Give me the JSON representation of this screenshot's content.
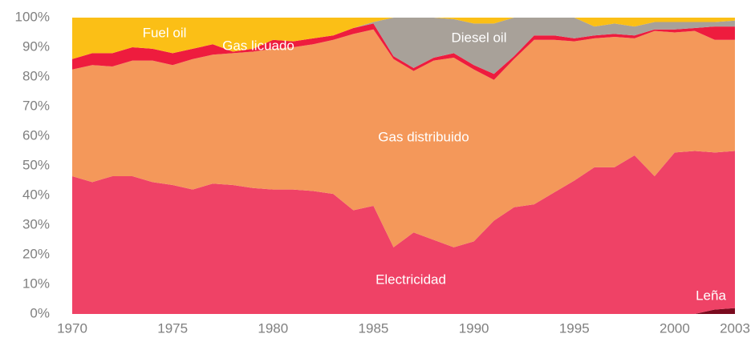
{
  "chart_data": {
    "type": "stacked_area",
    "x": [
      1970,
      1971,
      1972,
      1973,
      1974,
      1975,
      1976,
      1977,
      1978,
      1979,
      1980,
      1981,
      1982,
      1983,
      1984,
      1985,
      1986,
      1987,
      1988,
      1989,
      1990,
      1991,
      1992,
      1993,
      1994,
      1995,
      1996,
      1997,
      1998,
      1999,
      2000,
      2001,
      2002,
      2003
    ],
    "xlim": [
      1970,
      2003
    ],
    "xticks": [
      1970,
      1975,
      1980,
      1985,
      1990,
      1995,
      2000,
      2003
    ],
    "ylim": [
      0,
      100
    ],
    "yticks": [
      {
        "value": 0,
        "label": "0%"
      },
      {
        "value": 10,
        "label": "10%"
      },
      {
        "value": 20,
        "label": "20%"
      },
      {
        "value": 30,
        "label": "30%"
      },
      {
        "value": 40,
        "label": "40%"
      },
      {
        "value": 50,
        "label": "50%"
      },
      {
        "value": 60,
        "label": "60%"
      },
      {
        "value": 70,
        "label": "70%"
      },
      {
        "value": 80,
        "label": "80%"
      },
      {
        "value": 90,
        "label": "90%"
      },
      {
        "value": 100,
        "label": "100%"
      }
    ],
    "series": [
      {
        "name": "Leña",
        "color": "#7a0a1e",
        "values": [
          0,
          0,
          0,
          0,
          0,
          0,
          0,
          0,
          0,
          0,
          0,
          0,
          0,
          0,
          0,
          0,
          0,
          0,
          0,
          0,
          0,
          0,
          0,
          0,
          0,
          0,
          0,
          0,
          0,
          0,
          0,
          0,
          1.5,
          2
        ]
      },
      {
        "name": "Electricidad",
        "color": "#ef4266",
        "values": [
          46.5,
          44.5,
          46.5,
          46.5,
          44.5,
          43.5,
          42,
          44,
          43.5,
          42.5,
          42,
          42,
          41.5,
          40.5,
          35,
          36.5,
          22.5,
          27.5,
          25,
          22.5,
          24.5,
          31.5,
          36,
          37,
          41,
          45,
          49.5,
          49.5,
          53.5,
          46.5,
          54.5,
          55,
          53,
          53
        ]
      },
      {
        "name": "Gas distribuido",
        "color": "#f4985a",
        "values": [
          36,
          39.5,
          37,
          39,
          41,
          40.5,
          44,
          43.5,
          44.5,
          46,
          47.5,
          48,
          49.5,
          52,
          59.5,
          59.5,
          63.5,
          54.5,
          60.5,
          64,
          58,
          47.5,
          50,
          55.5,
          51.5,
          47,
          43.5,
          44,
          39.5,
          49,
          40.5,
          40.5,
          38,
          37.5
        ]
      },
      {
        "name": "Gas licuado",
        "color": "#ee1c3e",
        "values": [
          3.5,
          4,
          4.5,
          4.5,
          4,
          4,
          3.5,
          3.5,
          0.5,
          1,
          3,
          2,
          2,
          1.5,
          2,
          2,
          1,
          1,
          1,
          1.5,
          1.5,
          2,
          1,
          1.5,
          1.5,
          1,
          1,
          1,
          1,
          0.5,
          1,
          1,
          4.5,
          4.5
        ]
      },
      {
        "name": "Diesel oil",
        "color": "#a8a199",
        "values": [
          0,
          0,
          0,
          0,
          0,
          0,
          0,
          0,
          0,
          0,
          0,
          0,
          0,
          0,
          0,
          0.5,
          13,
          17,
          13.5,
          11.5,
          14,
          17,
          13,
          6,
          6,
          7,
          3,
          3.5,
          3,
          2.5,
          2.5,
          2,
          1.5,
          2
        ]
      },
      {
        "name": "Fuel oil",
        "color": "#fbbf16",
        "values": [
          14,
          12,
          12,
          10,
          10.5,
          12,
          10.5,
          9,
          11.5,
          10.5,
          7.5,
          8,
          7,
          6,
          3.5,
          1.5,
          0,
          0,
          0,
          0.5,
          2,
          2,
          0,
          0,
          0,
          0,
          3,
          2,
          3,
          1.5,
          1.5,
          1.5,
          1.5,
          1
        ]
      }
    ]
  }
}
